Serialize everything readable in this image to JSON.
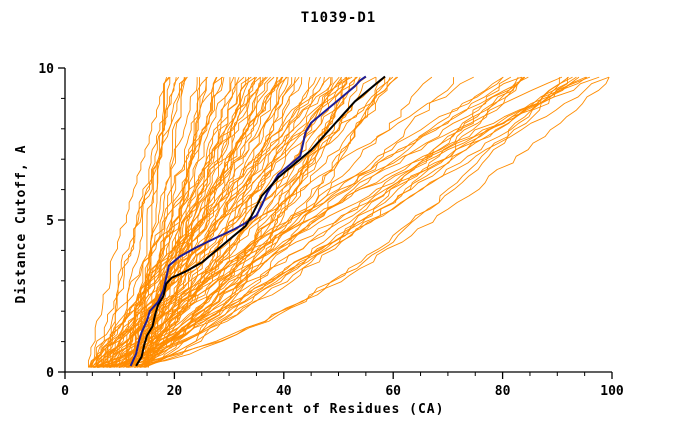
{
  "chart_data": {
    "type": "line",
    "title": "T1039-D1",
    "xlabel": "Percent of Residues (CA)",
    "ylabel": "Distance Cutoff, A",
    "xlim": [
      0,
      100
    ],
    "ylim": [
      0,
      10
    ],
    "x_ticks": [
      0,
      20,
      40,
      60,
      80,
      100
    ],
    "y_ticks": [
      0,
      5,
      10
    ],
    "x_minor_step": 5,
    "y_minor_step": 1,
    "grid": false,
    "legend": "none",
    "background_color": "#ffffff",
    "axis_color": "#000000",
    "series": [
      {
        "name": "highlighted-model-navy",
        "color": "#1c1c96",
        "width": 2,
        "points": [
          [
            12,
            0.2
          ],
          [
            13,
            0.6
          ],
          [
            13.5,
            1.0
          ],
          [
            14,
            1.3
          ],
          [
            15,
            1.7
          ],
          [
            15.5,
            2.0
          ],
          [
            17,
            2.3
          ],
          [
            18,
            2.7
          ],
          [
            18.5,
            3.1
          ],
          [
            19,
            3.5
          ],
          [
            21,
            3.8
          ],
          [
            24,
            4.1
          ],
          [
            28,
            4.45
          ],
          [
            31,
            4.7
          ],
          [
            33,
            4.9
          ],
          [
            35,
            5.15
          ],
          [
            36,
            5.5
          ],
          [
            37,
            5.9
          ],
          [
            38,
            6.2
          ],
          [
            39,
            6.5
          ],
          [
            41,
            6.8
          ],
          [
            43,
            7.1
          ],
          [
            43.5,
            7.5
          ],
          [
            44,
            7.9
          ],
          [
            45,
            8.2
          ],
          [
            47,
            8.5
          ],
          [
            49,
            8.8
          ],
          [
            51,
            9.1
          ],
          [
            53,
            9.4
          ],
          [
            54,
            9.6
          ],
          [
            55,
            9.72
          ]
        ]
      },
      {
        "name": "highlighted-model-black",
        "color": "#000000",
        "width": 2,
        "points": [
          [
            13,
            0.2
          ],
          [
            14,
            0.5
          ],
          [
            14.5,
            0.9
          ],
          [
            15,
            1.2
          ],
          [
            16,
            1.5
          ],
          [
            16.5,
            1.9
          ],
          [
            17,
            2.2
          ],
          [
            18,
            2.5
          ],
          [
            18.5,
            2.9
          ],
          [
            19.5,
            3.1
          ],
          [
            22,
            3.3
          ],
          [
            25,
            3.6
          ],
          [
            27,
            3.9
          ],
          [
            29,
            4.2
          ],
          [
            31,
            4.5
          ],
          [
            33,
            4.8
          ],
          [
            34,
            5.1
          ],
          [
            35,
            5.45
          ],
          [
            36,
            5.8
          ],
          [
            37.5,
            6.1
          ],
          [
            39,
            6.4
          ],
          [
            41,
            6.7
          ],
          [
            43,
            7.0
          ],
          [
            45,
            7.3
          ],
          [
            47,
            7.7
          ],
          [
            49,
            8.1
          ],
          [
            51,
            8.5
          ],
          [
            53,
            8.9
          ],
          [
            55,
            9.2
          ],
          [
            57,
            9.5
          ],
          [
            58.5,
            9.72
          ]
        ]
      }
    ],
    "ensemble": {
      "name": "predictor-model-curves",
      "description": "Dense band of ~105 unlabeled orange model curves rising from ~5-15% at cutoff 0 and fanning out to 18-100% at cutoff ~9.7",
      "color": "#ff8c00",
      "width": 0.9,
      "count": 105,
      "seed": 1039,
      "steps": 44,
      "y_range": [
        0.15,
        9.7
      ],
      "start_range": [
        4,
        15
      ],
      "jitter": 1.6,
      "shape_range": [
        0.55,
        1.3
      ],
      "end_distribution": [
        {
          "p": 0.58,
          "range": [
            18,
            56
          ]
        },
        {
          "p": 0.24,
          "range": [
            50,
            85
          ]
        },
        {
          "p": 0.18,
          "range": [
            80,
            100
          ]
        }
      ]
    }
  }
}
